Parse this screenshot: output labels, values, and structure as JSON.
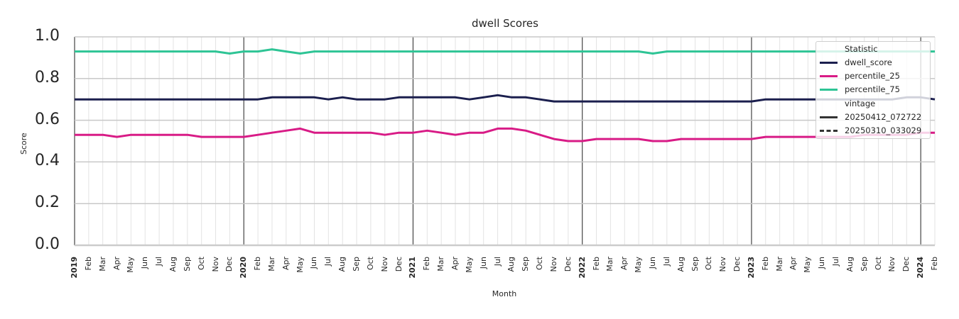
{
  "chart_data": {
    "type": "line",
    "title": "dwell Scores",
    "xlabel": "Month",
    "ylabel": "Score",
    "ylim": [
      0.0,
      1.0
    ],
    "yticks": [
      "0.0",
      "0.2",
      "0.4",
      "0.6",
      "0.8",
      "1.0"
    ],
    "grid": true,
    "legend_position": "upper right",
    "x": [
      "2019-01",
      "2019-02",
      "2019-03",
      "2019-04",
      "2019-05",
      "2019-06",
      "2019-07",
      "2019-08",
      "2019-09",
      "2019-10",
      "2019-11",
      "2019-12",
      "2020-01",
      "2020-02",
      "2020-03",
      "2020-04",
      "2020-05",
      "2020-06",
      "2020-07",
      "2020-08",
      "2020-09",
      "2020-10",
      "2020-11",
      "2020-12",
      "2021-01",
      "2021-02",
      "2021-03",
      "2021-04",
      "2021-05",
      "2021-06",
      "2021-07",
      "2021-08",
      "2021-09",
      "2021-10",
      "2021-11",
      "2021-12",
      "2022-01",
      "2022-02",
      "2022-03",
      "2022-04",
      "2022-05",
      "2022-06",
      "2022-07",
      "2022-08",
      "2022-09",
      "2022-10",
      "2022-11",
      "2022-12",
      "2023-01",
      "2023-02",
      "2023-03",
      "2023-04",
      "2023-05",
      "2023-06",
      "2023-07",
      "2023-08",
      "2023-09",
      "2023-10",
      "2023-11",
      "2023-12",
      "2024-01",
      "2024-02"
    ],
    "xtick_labels": [
      "2019",
      "Feb",
      "Mar",
      "Apr",
      "May",
      "Jun",
      "Jul",
      "Aug",
      "Sep",
      "Oct",
      "Nov",
      "Dec",
      "2020",
      "Feb",
      "Mar",
      "Apr",
      "May",
      "Jun",
      "Jul",
      "Aug",
      "Sep",
      "Oct",
      "Nov",
      "Dec",
      "2021",
      "Feb",
      "Mar",
      "Apr",
      "May",
      "Jun",
      "Jul",
      "Aug",
      "Sep",
      "Oct",
      "Nov",
      "Dec",
      "2022",
      "Feb",
      "Mar",
      "Apr",
      "May",
      "Jun",
      "Jul",
      "Aug",
      "Sep",
      "Oct",
      "Nov",
      "Dec",
      "2023",
      "Feb",
      "Mar",
      "Apr",
      "May",
      "Jun",
      "Jul",
      "Aug",
      "Sep",
      "Oct",
      "Nov",
      "Dec",
      "2024",
      "Feb"
    ],
    "series": [
      {
        "name": "dwell_score",
        "vintage": "20250412_072722",
        "color": "#1b1f4e",
        "dash": "solid",
        "values": [
          0.7,
          0.7,
          0.7,
          0.7,
          0.7,
          0.7,
          0.7,
          0.7,
          0.7,
          0.7,
          0.7,
          0.7,
          0.7,
          0.7,
          0.71,
          0.71,
          0.71,
          0.71,
          0.7,
          0.71,
          0.7,
          0.7,
          0.7,
          0.71,
          0.71,
          0.71,
          0.71,
          0.71,
          0.7,
          0.71,
          0.72,
          0.71,
          0.71,
          0.7,
          0.69,
          0.69,
          0.69,
          0.69,
          0.69,
          0.69,
          0.69,
          0.69,
          0.69,
          0.69,
          0.69,
          0.69,
          0.69,
          0.69,
          0.69,
          0.7,
          0.7,
          0.7,
          0.7,
          0.7,
          0.7,
          0.7,
          0.7,
          0.7,
          0.7,
          0.71,
          0.71,
          0.7
        ]
      },
      {
        "name": "percentile_25",
        "vintage": "20250412_072722",
        "color": "#d81b86",
        "dash": "solid",
        "values": [
          0.53,
          0.53,
          0.53,
          0.52,
          0.53,
          0.53,
          0.53,
          0.53,
          0.53,
          0.52,
          0.52,
          0.52,
          0.52,
          0.53,
          0.54,
          0.55,
          0.56,
          0.54,
          0.54,
          0.54,
          0.54,
          0.54,
          0.53,
          0.54,
          0.54,
          0.55,
          0.54,
          0.53,
          0.54,
          0.54,
          0.56,
          0.56,
          0.55,
          0.53,
          0.51,
          0.5,
          0.5,
          0.51,
          0.51,
          0.51,
          0.51,
          0.5,
          0.5,
          0.51,
          0.51,
          0.51,
          0.51,
          0.51,
          0.51,
          0.52,
          0.52,
          0.52,
          0.52,
          0.52,
          0.52,
          0.52,
          0.53,
          0.53,
          0.53,
          0.53,
          0.54,
          0.54
        ]
      },
      {
        "name": "percentile_75",
        "vintage": "20250412_072722",
        "color": "#2ec495",
        "dash": "solid",
        "values": [
          0.93,
          0.93,
          0.93,
          0.93,
          0.93,
          0.93,
          0.93,
          0.93,
          0.93,
          0.93,
          0.93,
          0.92,
          0.93,
          0.93,
          0.94,
          0.93,
          0.92,
          0.93,
          0.93,
          0.93,
          0.93,
          0.93,
          0.93,
          0.93,
          0.93,
          0.93,
          0.93,
          0.93,
          0.93,
          0.93,
          0.93,
          0.93,
          0.93,
          0.93,
          0.93,
          0.93,
          0.93,
          0.93,
          0.93,
          0.93,
          0.93,
          0.92,
          0.93,
          0.93,
          0.93,
          0.93,
          0.93,
          0.93,
          0.93,
          0.93,
          0.93,
          0.93,
          0.93,
          0.93,
          0.93,
          0.93,
          0.93,
          0.93,
          0.93,
          0.93,
          0.93,
          0.93
        ]
      }
    ],
    "legend": {
      "groups": [
        {
          "title": "Statistic",
          "entries": [
            {
              "label": "dwell_score",
              "color": "#1b1f4e",
              "dash": "solid"
            },
            {
              "label": "percentile_25",
              "color": "#d81b86",
              "dash": "solid"
            },
            {
              "label": "percentile_75",
              "color": "#2ec495",
              "dash": "solid"
            }
          ]
        },
        {
          "title": "vintage",
          "entries": [
            {
              "label": "20250412_072722",
              "color": "#333333",
              "dash": "solid"
            },
            {
              "label": "20250310_033029",
              "color": "#333333",
              "dash": "dashed"
            }
          ]
        }
      ]
    }
  }
}
